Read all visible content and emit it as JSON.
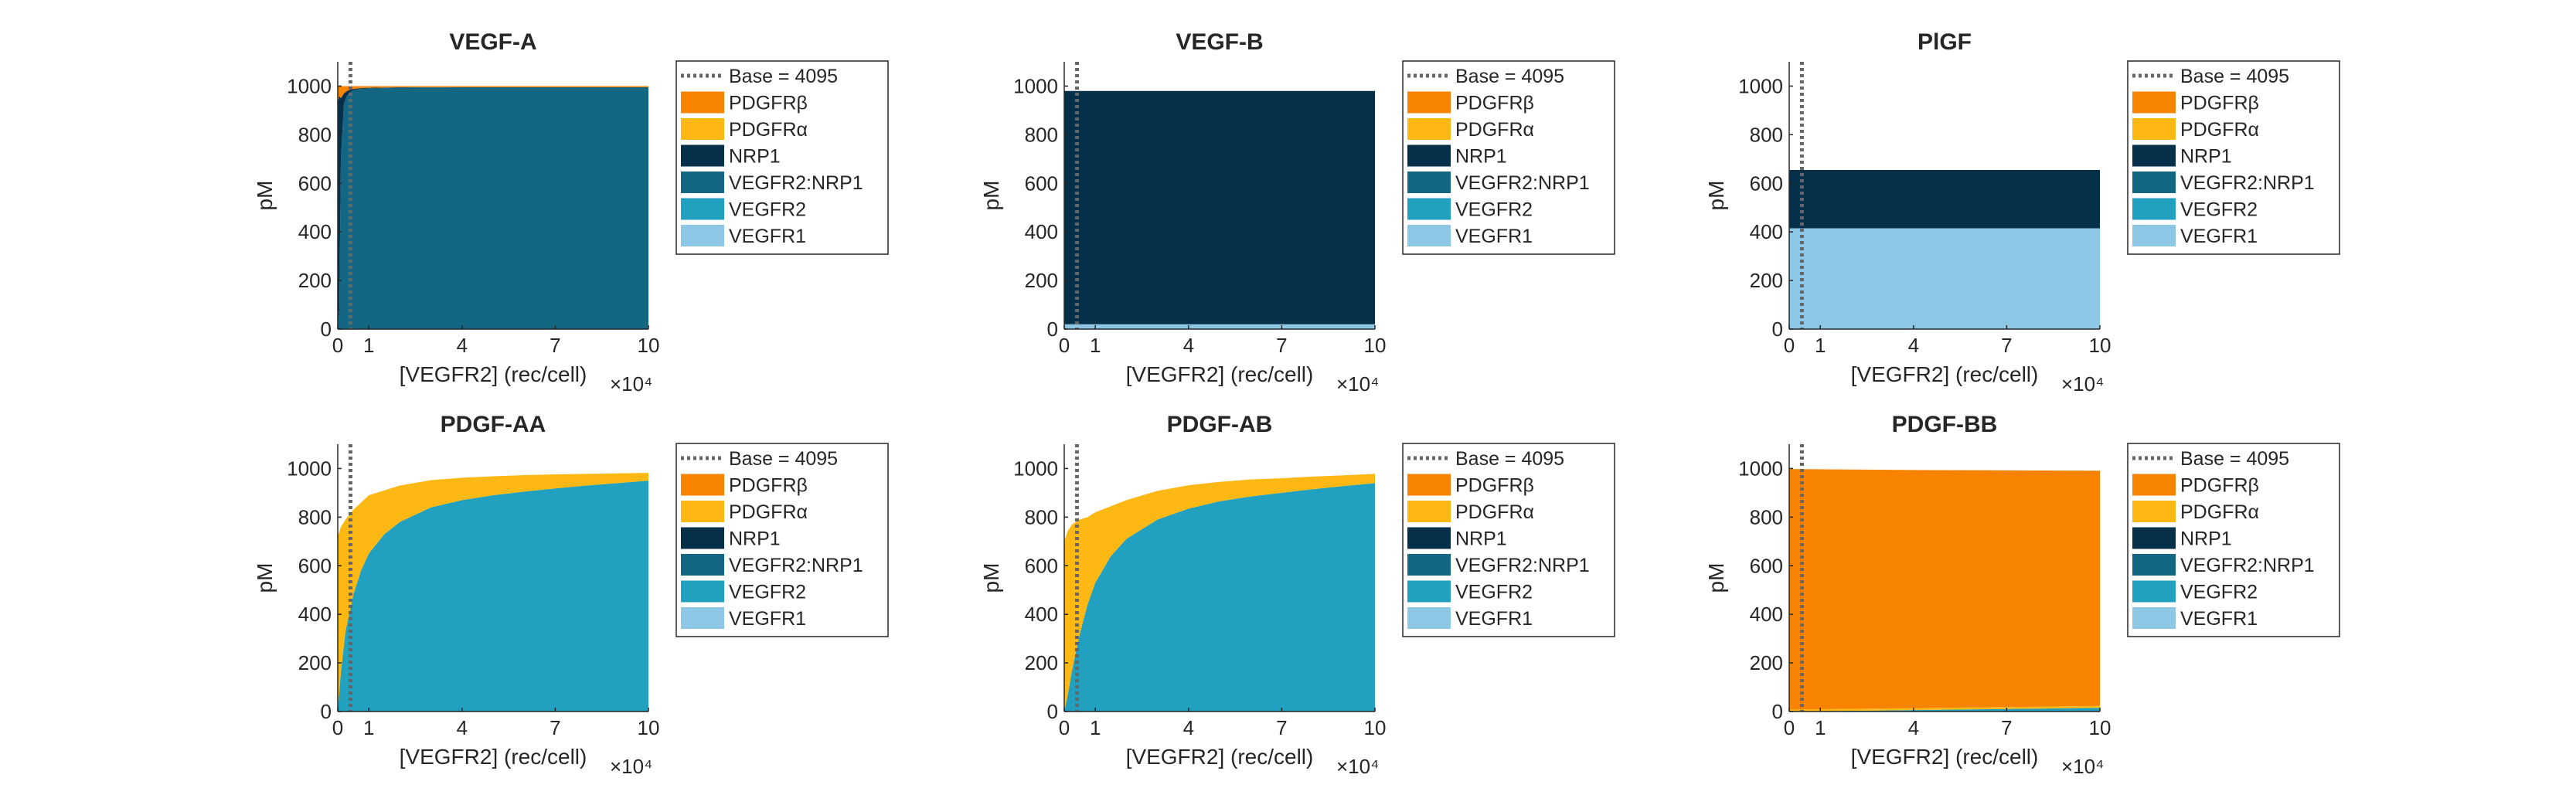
{
  "colors": {
    "PDGFRb": "#f78300",
    "PDGFRa": "#fdb813",
    "NRP1": "#06304a",
    "VEGFR2:NRP1": "#146782",
    "VEGFR2": "#21a0c0",
    "VEGFR1": "#8ec7e6",
    "base_line": "#666666"
  },
  "chart_data": [
    {
      "type": "area",
      "stacked": true,
      "title": "VEGF-A",
      "xlabel": "[VEGFR2] (rec/cell)",
      "x_exponent": "×10⁴",
      "ylabel": "pM",
      "xlim": [
        0,
        10
      ],
      "ylim": [
        0,
        1100
      ],
      "xticks": [
        0,
        1,
        4,
        7,
        10
      ],
      "xtick_labels": [
        "0",
        "1",
        "4",
        "7",
        "10"
      ],
      "yticks": [
        0,
        200,
        400,
        600,
        800,
        1000
      ],
      "base_line": {
        "label": "Base = 4095",
        "x": 0.4095
      },
      "x": [
        0,
        0.05,
        0.1,
        0.2,
        0.3,
        0.4,
        0.5,
        0.7,
        1,
        2,
        4,
        7,
        10
      ],
      "series": [
        {
          "name": "VEGFR1",
          "key": "VEGFR1",
          "values": [
            0,
            0,
            0,
            0,
            0,
            0,
            0,
            0,
            0,
            0,
            0,
            0,
            0
          ]
        },
        {
          "name": "VEGFR2",
          "key": "VEGFR2",
          "values": [
            0,
            0,
            0,
            0,
            0,
            0,
            0,
            0,
            0,
            0,
            0,
            0,
            0
          ]
        },
        {
          "name": "VEGFR2:NRP1",
          "key": "VEGFR2:NRP1",
          "values": [
            0,
            80,
            700,
            930,
            960,
            975,
            982,
            988,
            991,
            994,
            995,
            995,
            995
          ]
        },
        {
          "name": "NRP1",
          "key": "NRP1",
          "values": [
            930,
            880,
            250,
            40,
            20,
            10,
            6,
            3,
            2,
            1,
            0,
            0,
            0
          ]
        },
        {
          "name": "PDGFRα",
          "key": "PDGFRa",
          "values": [
            0,
            0,
            0,
            0,
            0,
            0,
            0,
            0,
            0,
            0,
            0,
            0,
            0
          ]
        },
        {
          "name": "PDGFRβ",
          "key": "PDGFRb",
          "values": [
            70,
            40,
            50,
            30,
            20,
            15,
            12,
            9,
            7,
            5,
            5,
            5,
            5
          ]
        }
      ]
    },
    {
      "type": "area",
      "stacked": true,
      "title": "VEGF-B",
      "xlabel": "[VEGFR2] (rec/cell)",
      "x_exponent": "×10⁴",
      "ylabel": "pM",
      "xlim": [
        0,
        10
      ],
      "ylim": [
        0,
        1100
      ],
      "xticks": [
        0,
        1,
        4,
        7,
        10
      ],
      "xtick_labels": [
        "0",
        "1",
        "4",
        "7",
        "10"
      ],
      "yticks": [
        0,
        200,
        400,
        600,
        800,
        1000
      ],
      "base_line": {
        "label": "Base = 4095",
        "x": 0.4095
      },
      "x": [
        0,
        10
      ],
      "series": [
        {
          "name": "VEGFR1",
          "key": "VEGFR1",
          "values": [
            20,
            20
          ]
        },
        {
          "name": "VEGFR2",
          "key": "VEGFR2",
          "values": [
            0,
            0
          ]
        },
        {
          "name": "VEGFR2:NRP1",
          "key": "VEGFR2:NRP1",
          "values": [
            0,
            0
          ]
        },
        {
          "name": "NRP1",
          "key": "NRP1",
          "values": [
            960,
            960
          ]
        },
        {
          "name": "PDGFRα",
          "key": "PDGFRa",
          "values": [
            0,
            0
          ]
        },
        {
          "name": "PDGFRβ",
          "key": "PDGFRb",
          "values": [
            0,
            0
          ]
        }
      ]
    },
    {
      "type": "area",
      "stacked": true,
      "title": "PlGF",
      "xlabel": "[VEGFR2] (rec/cell)",
      "x_exponent": "×10⁴",
      "ylabel": "pM",
      "xlim": [
        0,
        10
      ],
      "ylim": [
        0,
        1100
      ],
      "xticks": [
        0,
        1,
        4,
        7,
        10
      ],
      "xtick_labels": [
        "0",
        "1",
        "4",
        "7",
        "10"
      ],
      "yticks": [
        0,
        200,
        400,
        600,
        800,
        1000
      ],
      "base_line": {
        "label": "Base = 4095",
        "x": 0.4095
      },
      "x": [
        0,
        10
      ],
      "series": [
        {
          "name": "VEGFR1",
          "key": "VEGFR1",
          "values": [
            415,
            415
          ]
        },
        {
          "name": "VEGFR2",
          "key": "VEGFR2",
          "values": [
            0,
            0
          ]
        },
        {
          "name": "VEGFR2:NRP1",
          "key": "VEGFR2:NRP1",
          "values": [
            0,
            0
          ]
        },
        {
          "name": "NRP1",
          "key": "NRP1",
          "values": [
            240,
            240
          ]
        },
        {
          "name": "PDGFRα",
          "key": "PDGFRa",
          "values": [
            0,
            0
          ]
        },
        {
          "name": "PDGFRβ",
          "key": "PDGFRb",
          "values": [
            0,
            0
          ]
        }
      ]
    },
    {
      "type": "area",
      "stacked": true,
      "title": "PDGF-AA",
      "xlabel": "[VEGFR2] (rec/cell)",
      "x_exponent": "×10⁴",
      "ylabel": "pM",
      "xlim": [
        0,
        10
      ],
      "ylim": [
        0,
        1100
      ],
      "xticks": [
        0,
        1,
        4,
        7,
        10
      ],
      "xtick_labels": [
        "0",
        "1",
        "4",
        "7",
        "10"
      ],
      "yticks": [
        0,
        200,
        400,
        600,
        800,
        1000
      ],
      "base_line": {
        "label": "Base = 4095",
        "x": 0.4095
      },
      "x": [
        0,
        0.1,
        0.25,
        0.5,
        0.75,
        1,
        1.5,
        2,
        3,
        4,
        5,
        6,
        7,
        8,
        9,
        10
      ],
      "series": [
        {
          "name": "VEGFR1",
          "key": "VEGFR1",
          "values": [
            0,
            0,
            0,
            0,
            0,
            0,
            0,
            0,
            0,
            0,
            0,
            0,
            0,
            0,
            0,
            0
          ]
        },
        {
          "name": "VEGFR2",
          "key": "VEGFR2",
          "values": [
            0,
            160,
            330,
            480,
            580,
            650,
            730,
            780,
            840,
            870,
            890,
            905,
            918,
            930,
            940,
            950
          ]
        },
        {
          "name": "VEGFR2:NRP1",
          "key": "VEGFR2:NRP1",
          "values": [
            0,
            0,
            0,
            0,
            0,
            0,
            0,
            0,
            0,
            0,
            0,
            0,
            0,
            0,
            0,
            0
          ]
        },
        {
          "name": "NRP1",
          "key": "NRP1",
          "values": [
            0,
            0,
            0,
            0,
            0,
            0,
            0,
            0,
            0,
            0,
            0,
            0,
            0,
            0,
            0,
            0
          ]
        },
        {
          "name": "PDGFRα",
          "key": "PDGFRa",
          "values": [
            720,
            600,
            460,
            350,
            280,
            240,
            180,
            150,
            112,
            92,
            78,
            68,
            58,
            48,
            40,
            32
          ]
        },
        {
          "name": "PDGFRβ",
          "key": "PDGFRb",
          "values": [
            0,
            0,
            0,
            0,
            0,
            0,
            0,
            0,
            0,
            0,
            0,
            0,
            0,
            0,
            0,
            0
          ]
        }
      ]
    },
    {
      "type": "area",
      "stacked": true,
      "title": "PDGF-AB",
      "xlabel": "[VEGFR2] (rec/cell)",
      "x_exponent": "×10⁴",
      "ylabel": "pM",
      "xlim": [
        0,
        10
      ],
      "ylim": [
        0,
        1100
      ],
      "xticks": [
        0,
        1,
        4,
        7,
        10
      ],
      "xtick_labels": [
        "0",
        "1",
        "4",
        "7",
        "10"
      ],
      "yticks": [
        0,
        200,
        400,
        600,
        800,
        1000
      ],
      "base_line": {
        "label": "Base = 4095",
        "x": 0.4095
      },
      "x": [
        0,
        0.1,
        0.25,
        0.5,
        0.75,
        1,
        1.5,
        2,
        3,
        4,
        5,
        6,
        7,
        8,
        9,
        10
      ],
      "series": [
        {
          "name": "VEGFR1",
          "key": "VEGFR1",
          "values": [
            0,
            0,
            0,
            0,
            0,
            0,
            0,
            0,
            0,
            0,
            0,
            0,
            0,
            0,
            0,
            0
          ]
        },
        {
          "name": "VEGFR2",
          "key": "VEGFR2",
          "values": [
            0,
            60,
            170,
            320,
            440,
            530,
            640,
            710,
            790,
            835,
            865,
            885,
            900,
            915,
            928,
            940
          ]
        },
        {
          "name": "VEGFR2:NRP1",
          "key": "VEGFR2:NRP1",
          "values": [
            0,
            0,
            0,
            0,
            0,
            0,
            0,
            0,
            0,
            0,
            0,
            0,
            0,
            0,
            0,
            0
          ]
        },
        {
          "name": "NRP1",
          "key": "NRP1",
          "values": [
            0,
            0,
            0,
            0,
            0,
            0,
            0,
            0,
            0,
            0,
            0,
            0,
            0,
            0,
            0,
            0
          ]
        },
        {
          "name": "PDGFRα",
          "key": "PDGFRa",
          "values": [
            700,
            680,
            600,
            470,
            360,
            290,
            205,
            160,
            118,
            96,
            80,
            70,
            60,
            52,
            44,
            38
          ]
        },
        {
          "name": "PDGFRβ",
          "key": "PDGFRb",
          "values": [
            0,
            0,
            0,
            0,
            0,
            0,
            0,
            0,
            0,
            0,
            0,
            0,
            0,
            0,
            0,
            0
          ]
        }
      ]
    },
    {
      "type": "area",
      "stacked": true,
      "title": "PDGF-BB",
      "xlabel": "[VEGFR2] (rec/cell)",
      "x_exponent": "×10⁴",
      "ylabel": "pM",
      "xlim": [
        0,
        10
      ],
      "ylim": [
        0,
        1100
      ],
      "xticks": [
        0,
        1,
        4,
        7,
        10
      ],
      "xtick_labels": [
        "0",
        "1",
        "4",
        "7",
        "10"
      ],
      "yticks": [
        0,
        200,
        400,
        600,
        800,
        1000
      ],
      "base_line": {
        "label": "Base = 4095",
        "x": 0.4095
      },
      "x": [
        0,
        2,
        4,
        6,
        8,
        10
      ],
      "series": [
        {
          "name": "VEGFR1",
          "key": "VEGFR1",
          "values": [
            0,
            0,
            0,
            0,
            0,
            0
          ]
        },
        {
          "name": "VEGFR2",
          "key": "VEGFR2",
          "values": [
            0,
            3,
            6,
            9,
            12,
            15
          ]
        },
        {
          "name": "VEGFR2:NRP1",
          "key": "VEGFR2:NRP1",
          "values": [
            0,
            0,
            0,
            0,
            0,
            0
          ]
        },
        {
          "name": "NRP1",
          "key": "NRP1",
          "values": [
            0,
            0,
            0,
            0,
            0,
            0
          ]
        },
        {
          "name": "PDGFRα",
          "key": "PDGFRa",
          "values": [
            8,
            8,
            8,
            8,
            8,
            8
          ]
        },
        {
          "name": "PDGFRβ",
          "key": "PDGFRb",
          "values": [
            990,
            985,
            980,
            976,
            972,
            968
          ]
        }
      ]
    }
  ]
}
